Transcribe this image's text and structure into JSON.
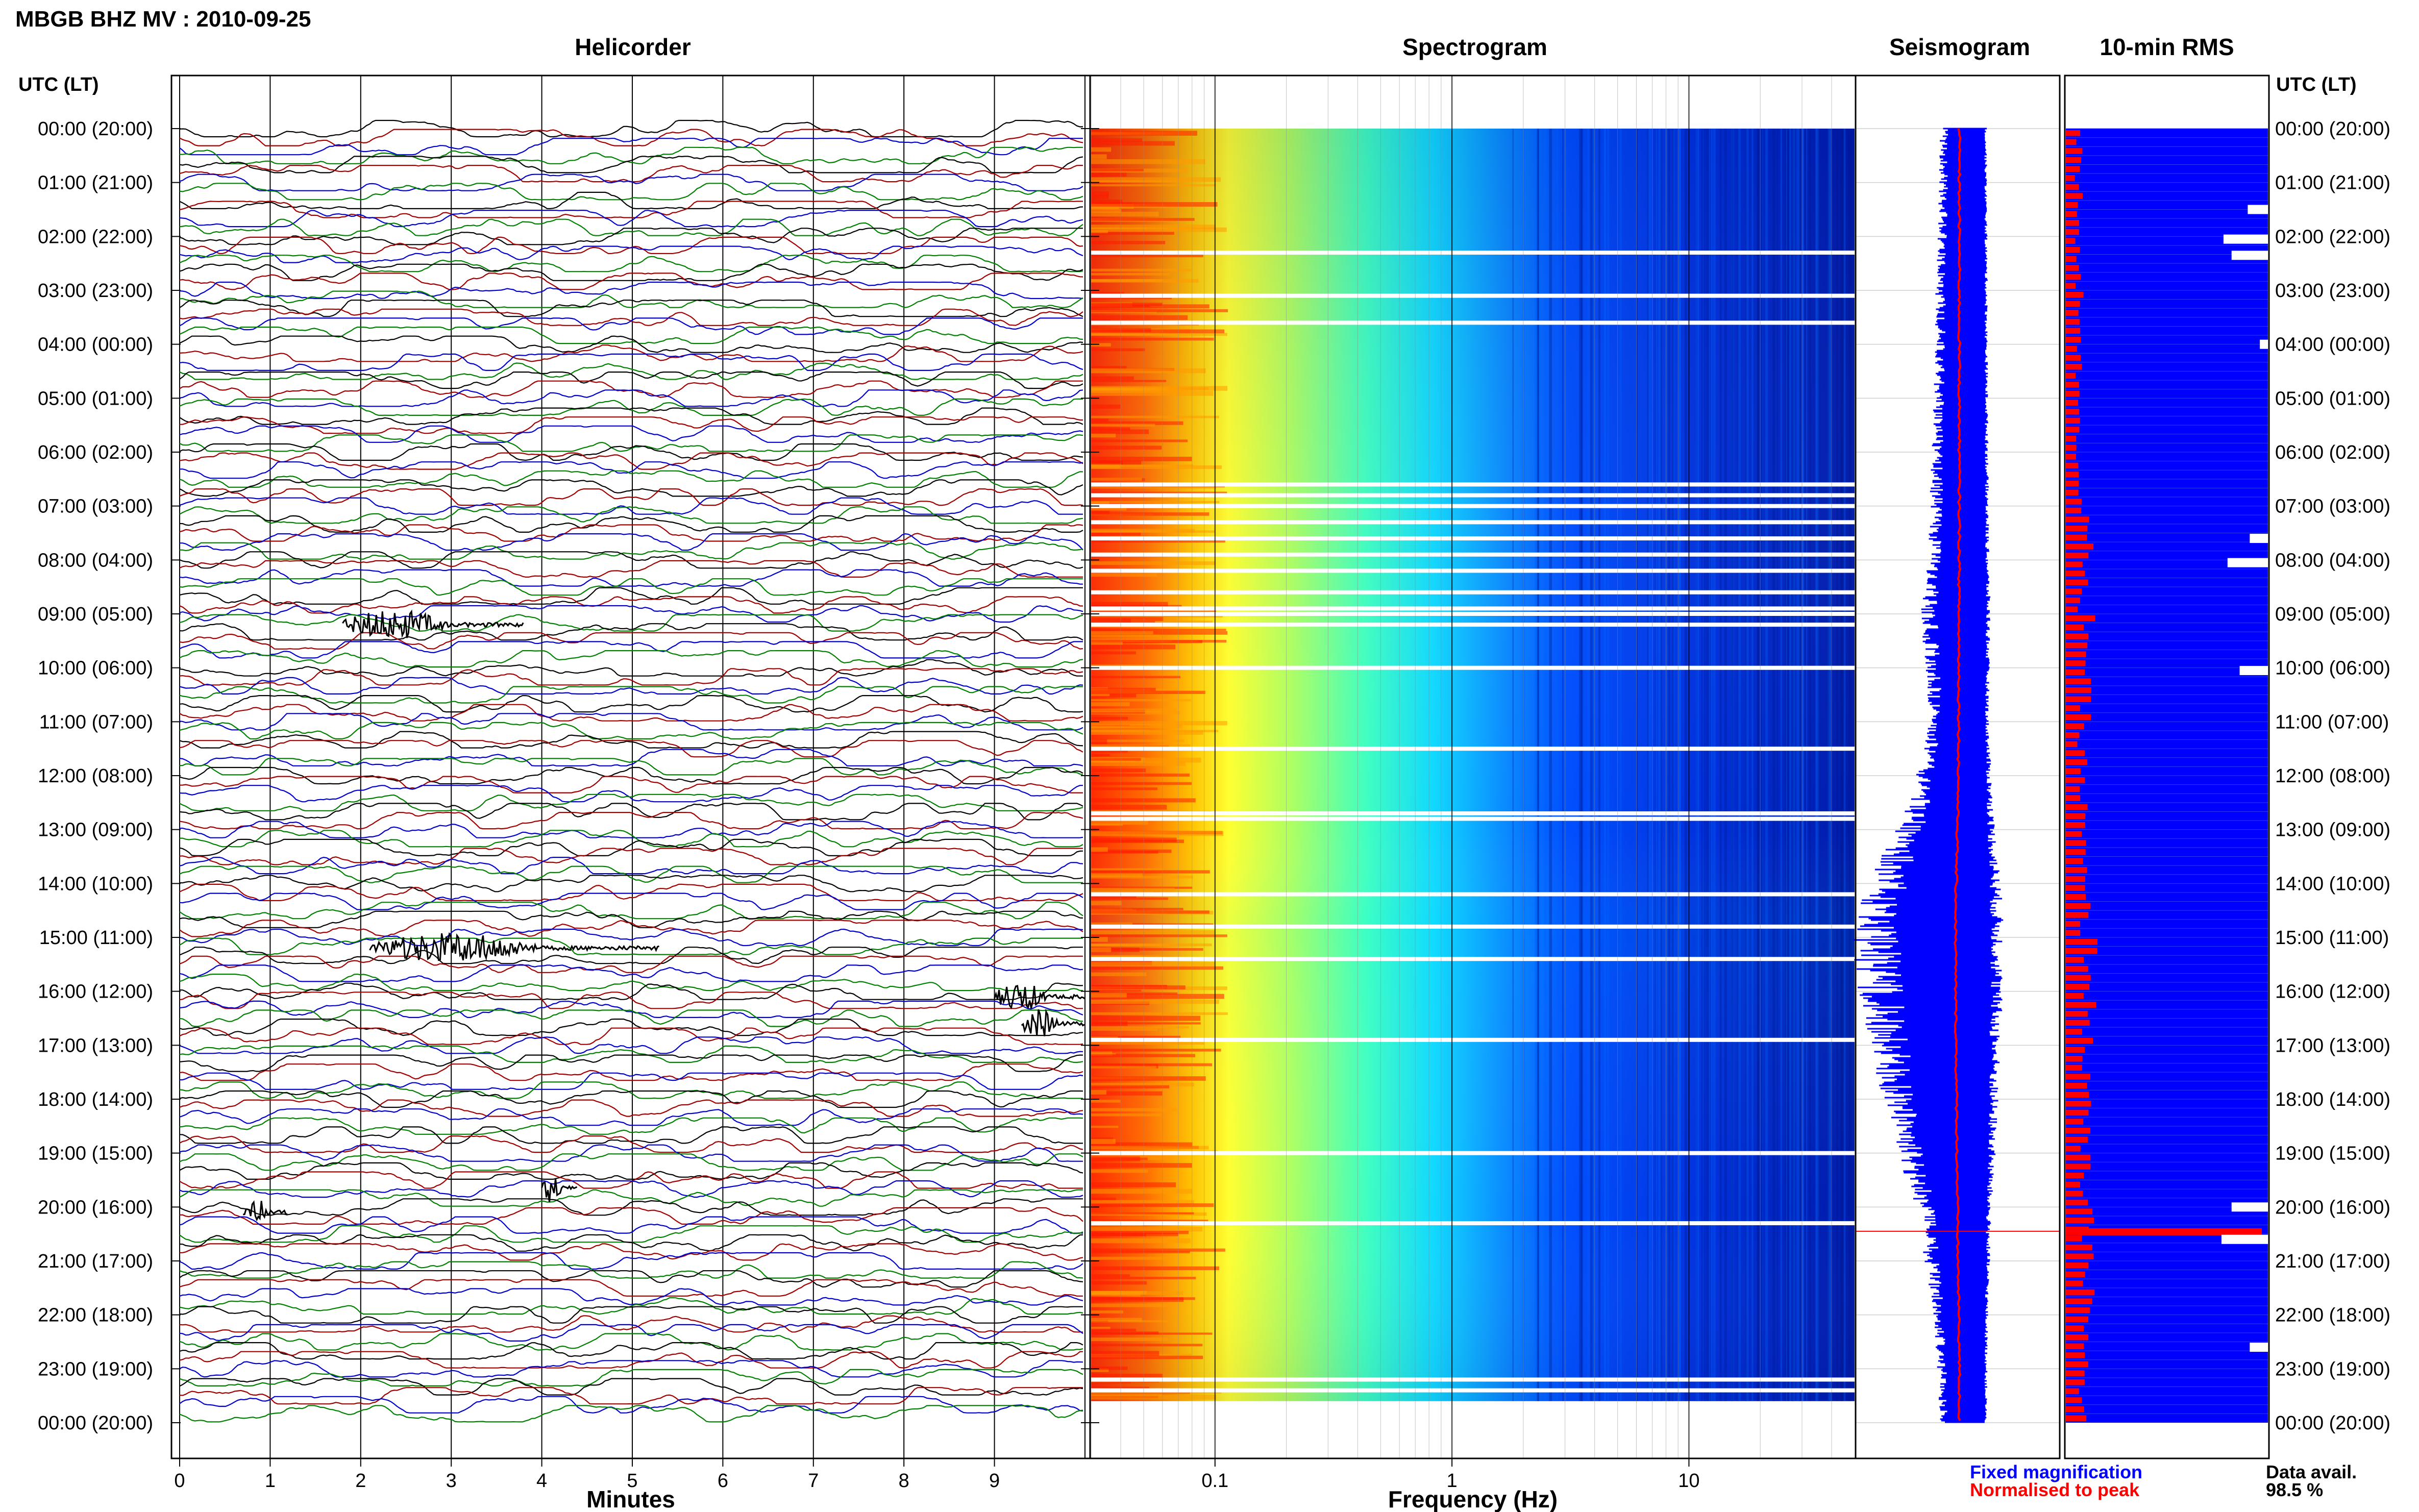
{
  "header": {
    "station_title": "MBGB BHZ MV : 2010-09-25"
  },
  "panels": {
    "helicorder": {
      "title": "Helicorder",
      "xlabel": "Minutes"
    },
    "spectrogram": {
      "title": "Spectrogram",
      "xlabel": "Frequency (Hz)"
    },
    "seismogram": {
      "title": "Seismogram"
    },
    "rms": {
      "title": "10-min RMS"
    }
  },
  "axis": {
    "left_label": "UTC (LT)",
    "right_label": "UTC (LT)",
    "time_ticks": [
      "00:00 (20:00)",
      "01:00 (21:00)",
      "02:00 (22:00)",
      "03:00 (23:00)",
      "04:00 (00:00)",
      "05:00 (01:00)",
      "06:00 (02:00)",
      "07:00 (03:00)",
      "08:00 (04:00)",
      "09:00 (05:00)",
      "10:00 (06:00)",
      "11:00 (07:00)",
      "12:00 (08:00)",
      "13:00 (09:00)",
      "14:00 (10:00)",
      "15:00 (11:00)",
      "16:00 (12:00)",
      "17:00 (13:00)",
      "18:00 (14:00)",
      "19:00 (15:00)",
      "20:00 (16:00)",
      "21:00 (17:00)",
      "22:00 (18:00)",
      "23:00 (19:00)",
      "00:00 (20:00)"
    ],
    "minute_ticks": [
      "0",
      "1",
      "2",
      "3",
      "4",
      "5",
      "6",
      "7",
      "8",
      "9"
    ],
    "freq_ticks": [
      "0.1",
      "1",
      "10"
    ]
  },
  "legend": {
    "fixed": "Fixed magnification",
    "normalised": "Normalised to peak",
    "fixed_color": "#0000ff",
    "normalised_color": "#ff0000"
  },
  "availability": {
    "label": "Data avail.",
    "value": "98.5 %"
  },
  "chart_data": [
    {
      "type": "line",
      "panel": "helicorder",
      "x_range_minutes": [
        0,
        10
      ],
      "rows_per_hour": 6,
      "trace_colors": [
        "#000000",
        "#a00000",
        "#0000cc",
        "#008000"
      ],
      "event_bursts": [
        {
          "utc_hour": 9.2,
          "start_min": 1.8,
          "end_min": 3.8
        },
        {
          "utc_hour": 15.2,
          "start_min": 2.1,
          "end_min": 5.3
        },
        {
          "utc_hour": 16.1,
          "start_min": 9.0,
          "end_min": 10.0
        },
        {
          "utc_hour": 16.6,
          "start_min": 9.3,
          "end_min": 10.0
        },
        {
          "utc_hour": 19.65,
          "start_min": 4.0,
          "end_min": 4.4
        },
        {
          "utc_hour": 20.1,
          "start_min": 0.7,
          "end_min": 1.2
        }
      ]
    },
    {
      "type": "heatmap",
      "panel": "spectrogram",
      "freq_range_hz": [
        0.03,
        50
      ],
      "x_scale": "log",
      "gap_hours": [
        2.3,
        3.1,
        3.6,
        6.6,
        6.8,
        7.0,
        7.3,
        7.6,
        7.9,
        8.2,
        8.6,
        8.9,
        9.0,
        9.2,
        10.0,
        11.5,
        12.7,
        12.8,
        14.2,
        14.8,
        15.4,
        16.9,
        19.0,
        20.3,
        23.2,
        23.4
      ]
    },
    {
      "type": "line",
      "panel": "seismogram",
      "series": [
        {
          "name": "Fixed magnification",
          "color": "#0000ff",
          "hourly_level": [
            0.1,
            0.1,
            0.11,
            0.12,
            0.12,
            0.13,
            0.14,
            0.15,
            0.16,
            0.2,
            0.17,
            0.15,
            0.22,
            0.32,
            0.48,
            0.55,
            0.52,
            0.46,
            0.4,
            0.33,
            0.22,
            0.18,
            0.13,
            0.11,
            0.1
          ]
        },
        {
          "name": "Normalised to peak",
          "color": "#ff0000",
          "hourly_level": [
            0.01,
            0.01,
            0.01,
            0.01,
            0.01,
            0.01,
            0.01,
            0.01,
            0.01,
            0.02,
            0.02,
            0.02,
            0.03,
            0.05,
            0.08,
            0.09,
            0.09,
            0.08,
            0.07,
            0.06,
            0.05,
            0.04,
            0.02,
            0.01,
            0.01
          ]
        }
      ]
    },
    {
      "type": "bar",
      "panel": "rms",
      "red_bar_levels_by_hour": [
        0.06,
        0.07,
        0.06,
        0.08,
        0.06,
        0.07,
        0.06,
        0.1,
        0.08,
        0.11,
        0.09,
        0.08,
        0.08,
        0.08,
        0.09,
        0.12,
        0.11,
        0.1,
        0.09,
        0.09,
        0.1,
        0.12,
        0.09,
        0.08
      ],
      "peak_event": {
        "utc_hour": 20.45,
        "level": 0.97
      },
      "data_gaps": [
        {
          "utc_hour": 1.5,
          "width_fraction": 0.1
        },
        {
          "utc_hour": 2.05,
          "width_fraction": 0.22
        },
        {
          "utc_hour": 2.35,
          "width_fraction": 0.18
        },
        {
          "utc_hour": 4.0,
          "width_fraction": 0.04
        },
        {
          "utc_hour": 7.6,
          "width_fraction": 0.09
        },
        {
          "utc_hour": 8.05,
          "width_fraction": 0.2
        },
        {
          "utc_hour": 10.05,
          "width_fraction": 0.14
        },
        {
          "utc_hour": 20.0,
          "width_fraction": 0.18
        },
        {
          "utc_hour": 20.6,
          "width_fraction": 0.23
        },
        {
          "utc_hour": 22.6,
          "width_fraction": 0.09
        }
      ]
    }
  ]
}
